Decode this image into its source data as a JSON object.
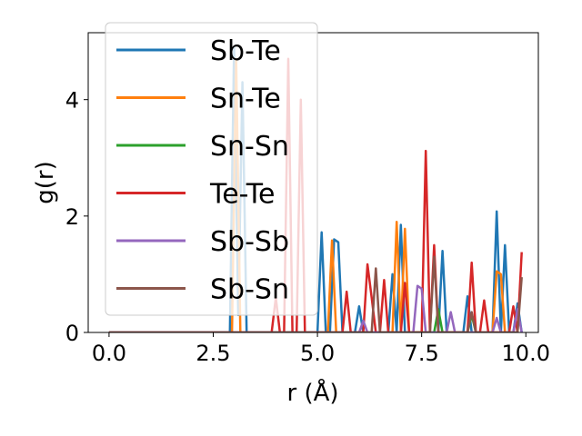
{
  "chart_data": {
    "type": "line",
    "xlabel": "r (Å)",
    "ylabel": "g(r)",
    "xlim": [
      -0.5,
      10.3
    ],
    "ylim": [
      0,
      5.15
    ],
    "xticks": [
      0.0,
      2.5,
      5.0,
      7.5,
      10.0
    ],
    "xtick_labels": [
      "0.0",
      "2.5",
      "5.0",
      "7.5",
      "10.0"
    ],
    "yticks": [
      0,
      2,
      4
    ],
    "ytick_labels": [
      "0",
      "2",
      "4"
    ],
    "grid": false,
    "legend": "top-left",
    "series": [
      {
        "name": "Sb-Te",
        "color": "#1f77b4",
        "points": [
          [
            0,
            0
          ],
          [
            2.9,
            0
          ],
          [
            3.0,
            4.9
          ],
          [
            3.1,
            0.3
          ],
          [
            3.2,
            4.3
          ],
          [
            3.3,
            0
          ],
          [
            5.0,
            0
          ],
          [
            5.1,
            1.72
          ],
          [
            5.2,
            0
          ],
          [
            5.3,
            0
          ],
          [
            5.4,
            1.6
          ],
          [
            5.5,
            1.55
          ],
          [
            5.6,
            0
          ],
          [
            5.9,
            0
          ],
          [
            6.0,
            0.45
          ],
          [
            6.1,
            0
          ],
          [
            6.7,
            0
          ],
          [
            6.8,
            1.0
          ],
          [
            6.9,
            0
          ],
          [
            7.0,
            1.85
          ],
          [
            7.1,
            0
          ],
          [
            7.5,
            0
          ],
          [
            7.6,
            0
          ],
          [
            7.9,
            0
          ],
          [
            8.0,
            1.4
          ],
          [
            8.1,
            0
          ],
          [
            8.5,
            0
          ],
          [
            8.6,
            0.62
          ],
          [
            8.7,
            0
          ],
          [
            9.2,
            0
          ],
          [
            9.3,
            2.08
          ],
          [
            9.4,
            0
          ],
          [
            9.5,
            1.5
          ],
          [
            9.6,
            0
          ],
          [
            9.7,
            0
          ],
          [
            9.8,
            0.5
          ],
          [
            9.9,
            0
          ]
        ]
      },
      {
        "name": "Sn-Te",
        "color": "#ff7f0e",
        "points": [
          [
            0,
            0
          ],
          [
            2.95,
            0
          ],
          [
            3.05,
            4.7
          ],
          [
            3.15,
            0
          ],
          [
            5.25,
            0
          ],
          [
            5.35,
            1.58
          ],
          [
            5.45,
            0
          ],
          [
            6.8,
            0
          ],
          [
            6.9,
            1.9
          ],
          [
            7.0,
            0
          ],
          [
            7.1,
            1.78
          ],
          [
            7.2,
            0
          ],
          [
            9.2,
            0
          ],
          [
            9.3,
            1.05
          ],
          [
            9.4,
            1.0
          ],
          [
            9.5,
            0
          ]
        ]
      },
      {
        "name": "Sn-Sn",
        "color": "#2ca02c",
        "points": [
          [
            0,
            0
          ],
          [
            7.8,
            0
          ],
          [
            7.9,
            0.4
          ],
          [
            8.0,
            0
          ],
          [
            8.6,
            0
          ],
          [
            8.7,
            0.3
          ],
          [
            8.8,
            0
          ]
        ]
      },
      {
        "name": "Te-Te",
        "color": "#d62728",
        "points": [
          [
            0,
            0
          ],
          [
            3.9,
            0
          ],
          [
            4.0,
            0.6
          ],
          [
            4.1,
            0
          ],
          [
            4.2,
            0
          ],
          [
            4.3,
            4.7
          ],
          [
            4.4,
            0
          ],
          [
            4.5,
            0
          ],
          [
            4.6,
            4.0
          ],
          [
            4.7,
            0
          ],
          [
            5.6,
            0
          ],
          [
            5.7,
            0.7
          ],
          [
            5.8,
            0
          ],
          [
            6.1,
            0
          ],
          [
            6.2,
            1.17
          ],
          [
            6.3,
            0.6
          ],
          [
            6.4,
            0
          ],
          [
            6.5,
            0
          ],
          [
            6.6,
            0.9
          ],
          [
            6.7,
            0
          ],
          [
            7.0,
            0
          ],
          [
            7.1,
            0.85
          ],
          [
            7.2,
            0
          ],
          [
            7.5,
            0
          ],
          [
            7.6,
            3.12
          ],
          [
            7.7,
            0
          ],
          [
            7.8,
            1.5
          ],
          [
            7.9,
            0
          ],
          [
            8.6,
            0
          ],
          [
            8.7,
            1.2
          ],
          [
            8.8,
            0
          ],
          [
            8.9,
            0
          ],
          [
            9.0,
            0.55
          ],
          [
            9.1,
            0
          ],
          [
            9.6,
            0
          ],
          [
            9.7,
            0.45
          ],
          [
            9.8,
            0
          ],
          [
            9.9,
            1.38
          ]
        ]
      },
      {
        "name": "Sb-Sb",
        "color": "#9467bd",
        "points": [
          [
            0,
            0
          ],
          [
            6.0,
            0
          ],
          [
            6.1,
            0.2
          ],
          [
            6.2,
            0
          ],
          [
            7.3,
            0
          ],
          [
            7.4,
            0.8
          ],
          [
            7.5,
            0.75
          ],
          [
            7.6,
            0
          ],
          [
            8.1,
            0
          ],
          [
            8.2,
            0.35
          ],
          [
            8.3,
            0
          ],
          [
            9.2,
            0
          ],
          [
            9.3,
            0.25
          ],
          [
            9.4,
            0
          ],
          [
            9.7,
            0
          ],
          [
            9.8,
            0.4
          ],
          [
            9.9,
            0
          ]
        ]
      },
      {
        "name": "Sb-Sn",
        "color": "#8c564b",
        "points": [
          [
            0,
            0
          ],
          [
            6.3,
            0
          ],
          [
            6.4,
            1.1
          ],
          [
            6.5,
            0
          ],
          [
            7.7,
            0
          ],
          [
            7.8,
            1.3
          ],
          [
            7.9,
            0
          ],
          [
            8.6,
            0
          ],
          [
            8.7,
            0.35
          ],
          [
            8.8,
            0
          ],
          [
            9.8,
            0
          ],
          [
            9.9,
            0.95
          ]
        ]
      }
    ]
  }
}
